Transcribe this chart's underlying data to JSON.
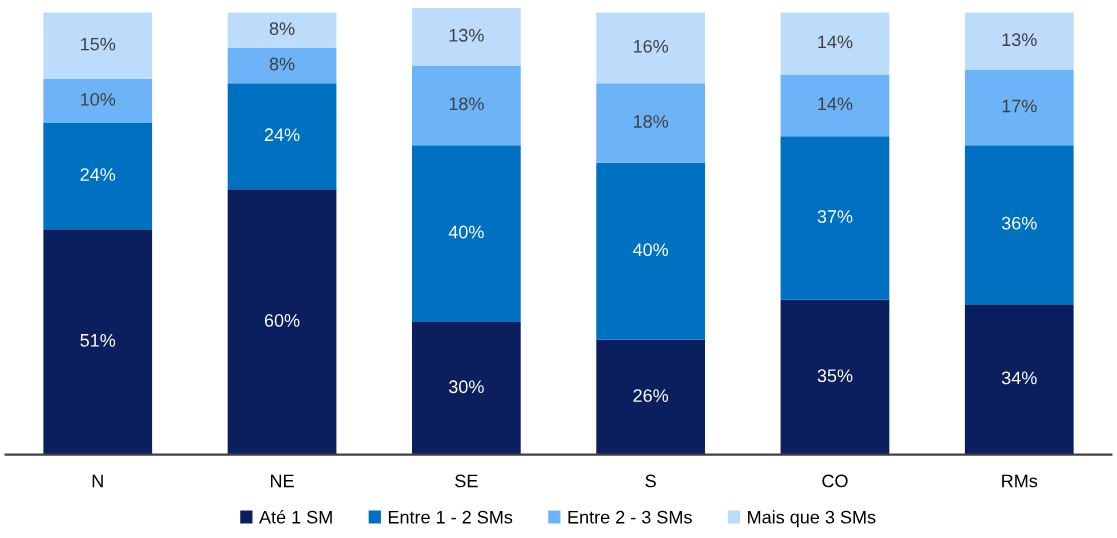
{
  "chart_data": {
    "type": "bar",
    "stacked": true,
    "categories": [
      "N",
      "NE",
      "SE",
      "S",
      "CO",
      "RMs"
    ],
    "series": [
      {
        "name": "Até 1 SM",
        "color": "#0b1f5e",
        "values": [
          51,
          60,
          30,
          26,
          35,
          34
        ],
        "value_labels": [
          "51%",
          "60%",
          "30%",
          "26%",
          "35%",
          "34%"
        ]
      },
      {
        "name": "Entre 1 - 2 SMs",
        "color": "#0070c0",
        "values": [
          24,
          24,
          40,
          40,
          37,
          36
        ],
        "value_labels": [
          "24%",
          "24%",
          "40%",
          "40%",
          "37%",
          "36%"
        ]
      },
      {
        "name": "Entre 2 - 3 SMs",
        "color": "#6cb4f7",
        "values": [
          10,
          8,
          18,
          18,
          14,
          17
        ],
        "value_labels": [
          "10%",
          "8%",
          "18%",
          "18%",
          "14%",
          "17%"
        ]
      },
      {
        "name": "Mais que 3 SMs",
        "color": "#bddcfb",
        "values": [
          15,
          8,
          13,
          16,
          14,
          13
        ],
        "value_labels": [
          "15%",
          "8%",
          "13%",
          "16%",
          "14%",
          "13%"
        ]
      }
    ],
    "legend": "bottom",
    "grid": false,
    "tick_labels": "x"
  }
}
